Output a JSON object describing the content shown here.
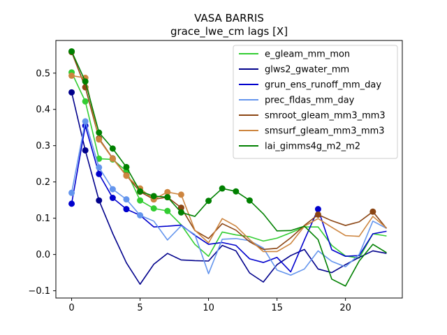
{
  "chart_data": {
    "type": "line",
    "title": "VASA BARRIS",
    "subtitle": "grace_lwe_cm lags [X]",
    "xlabel": "",
    "ylabel": "",
    "xlim": [
      -1.15,
      24.15
    ],
    "ylim": [
      -0.12,
      0.59
    ],
    "xticks": [
      0,
      5,
      10,
      15,
      20
    ],
    "yticks": [
      -0.1,
      0.0,
      0.1,
      0.2,
      0.3,
      0.4,
      0.5
    ],
    "ytick_labels": [
      "−0.1",
      "0.0",
      "0.1",
      "0.2",
      "0.3",
      "0.4",
      "0.5"
    ],
    "grid": false,
    "legend_position": "upper-right",
    "x": [
      0,
      1,
      2,
      3,
      4,
      5,
      6,
      7,
      8,
      9,
      10,
      11,
      12,
      13,
      14,
      15,
      16,
      17,
      18,
      19,
      20,
      21,
      22,
      23
    ],
    "series": [
      {
        "name": "e_gleam_mm_mon",
        "color": "#32cd32",
        "marker_color": "#32cd32",
        "values": [
          0.502,
          0.422,
          0.264,
          0.262,
          0.23,
          0.149,
          0.127,
          0.12,
          0.082,
          0.028,
          -0.005,
          0.062,
          0.054,
          0.049,
          0.037,
          0.045,
          0.06,
          0.076,
          0.076,
          0.025,
          -0.004,
          -0.01,
          0.057,
          0.051
        ],
        "markers": [
          0,
          1,
          2,
          3,
          4,
          5,
          6,
          7
        ]
      },
      {
        "name": "glws2_gwater_mm",
        "color": "#00008b",
        "marker_color": "#00008b",
        "values": [
          0.447,
          0.287,
          0.149,
          0.058,
          -0.023,
          -0.082,
          -0.027,
          0.003,
          -0.015,
          -0.017,
          -0.018,
          0.025,
          0.01,
          -0.051,
          -0.076,
          -0.028,
          -0.003,
          0.014,
          -0.04,
          -0.05,
          -0.028,
          -0.008,
          0.01,
          0.003
        ],
        "markers": [
          0,
          1,
          2
        ]
      },
      {
        "name": "grun_ens_runoff_mm_day",
        "color": "#0000cd",
        "marker_color": "#0000cd",
        "values": [
          0.14,
          0.355,
          0.222,
          0.156,
          0.125,
          0.108,
          0.076,
          0.078,
          0.081,
          0.053,
          0.028,
          0.033,
          0.025,
          -0.012,
          -0.022,
          -0.008,
          -0.048,
          0.04,
          0.125,
          0.013,
          -0.005,
          -0.003,
          0.057,
          0.064
        ],
        "markers": [
          0,
          1,
          2,
          3,
          4,
          18
        ]
      },
      {
        "name": "prec_fldas_mm_day",
        "color": "#6495ed",
        "marker_color": "#6495ed",
        "values": [
          0.17,
          0.367,
          0.24,
          0.18,
          0.152,
          0.108,
          0.092,
          0.04,
          0.079,
          0.055,
          -0.053,
          0.042,
          0.044,
          0.038,
          0.018,
          -0.043,
          -0.057,
          -0.04,
          0.01,
          -0.019,
          -0.034,
          0.0,
          0.092,
          0.072
        ],
        "markers": [
          0,
          1,
          2,
          3,
          4,
          5
        ]
      },
      {
        "name": "smroot_gleam_mm3_mm3",
        "color": "#8b4513",
        "marker_color": "#8b4513",
        "values": [
          0.558,
          0.461,
          0.32,
          0.265,
          0.218,
          0.173,
          0.152,
          0.158,
          0.129,
          0.066,
          0.044,
          0.085,
          0.067,
          0.035,
          0.014,
          0.017,
          0.046,
          0.08,
          0.11,
          0.093,
          0.08,
          0.09,
          0.118,
          0.072
        ],
        "markers": [
          0,
          1,
          2,
          3,
          4,
          5,
          6,
          7,
          8,
          18,
          22
        ]
      },
      {
        "name": "smsurf_gleam_mm3_mm3",
        "color": "#cd853f",
        "marker_color": "#cd853f",
        "values": [
          0.493,
          0.487,
          0.317,
          0.264,
          0.217,
          0.182,
          0.152,
          0.172,
          0.165,
          0.067,
          0.032,
          0.099,
          0.078,
          0.041,
          0.008,
          0.008,
          0.03,
          0.078,
          0.099,
          0.075,
          0.052,
          0.05,
          0.105,
          0.073
        ],
        "markers": [
          0,
          1,
          2,
          3,
          4,
          5,
          6,
          7,
          8
        ]
      },
      {
        "name": "lai_gimms4g_m2_m2",
        "color": "#008000",
        "marker_color": "#008000",
        "values": [
          0.56,
          0.477,
          0.336,
          0.292,
          0.241,
          0.174,
          0.161,
          0.158,
          0.116,
          0.105,
          0.148,
          0.182,
          0.174,
          0.149,
          0.112,
          0.065,
          0.066,
          0.078,
          0.041,
          -0.068,
          -0.087,
          -0.018,
          0.028,
          0.005
        ],
        "markers": [
          0,
          1,
          2,
          3,
          4,
          5,
          6,
          7,
          8,
          10,
          11,
          12,
          13
        ]
      }
    ]
  }
}
